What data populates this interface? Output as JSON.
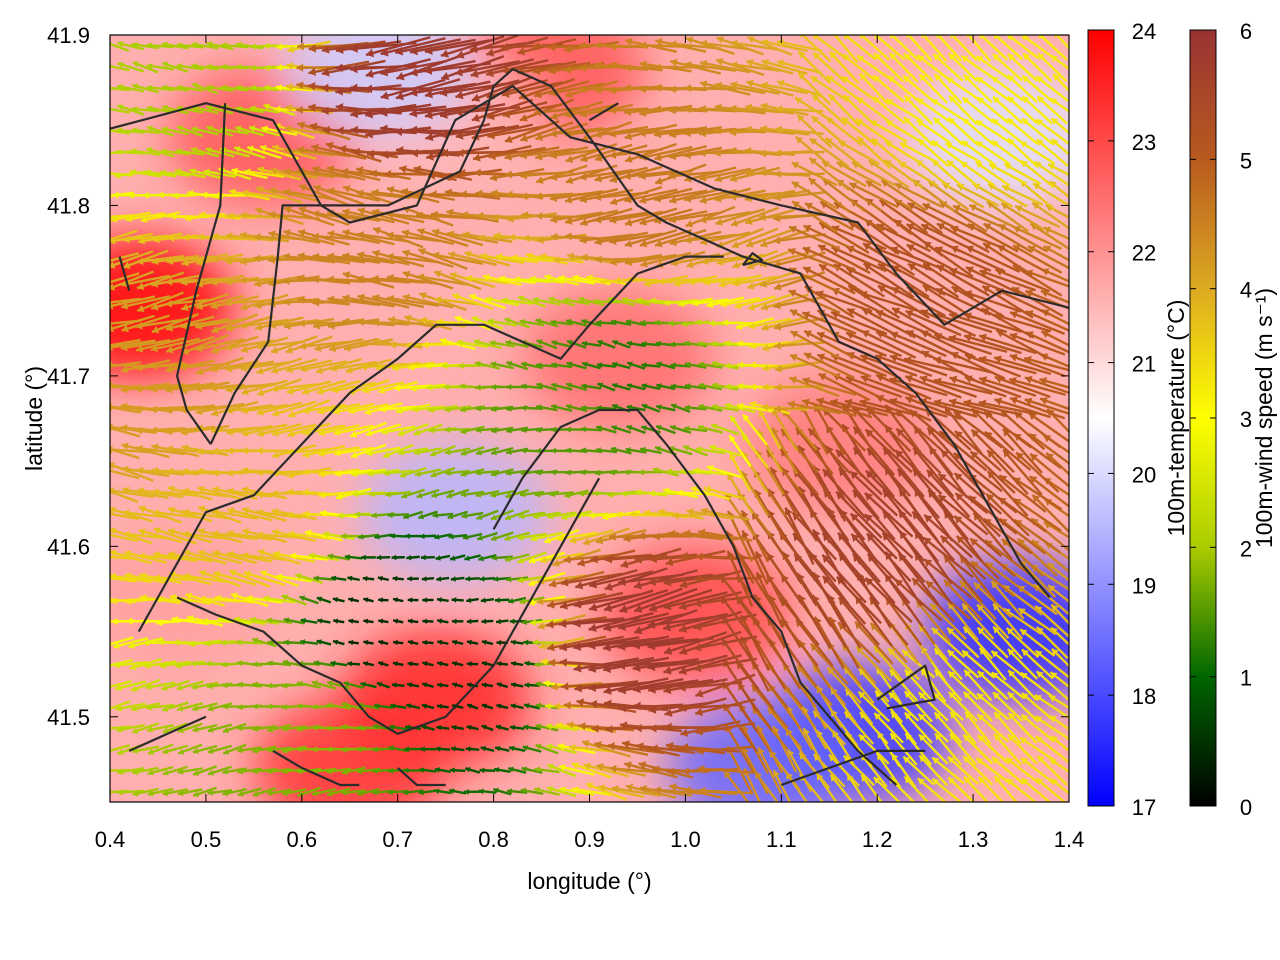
{
  "chart_data": {
    "type": "heatmap",
    "title": "",
    "xlabel": "longitude (°)",
    "ylabel": "latitude (°)",
    "xlim": [
      0.4,
      1.4
    ],
    "ylim": [
      41.45,
      41.9
    ],
    "x_ticks": [
      "0.4",
      "0.5",
      "0.6",
      "0.7",
      "0.8",
      "0.9",
      "1.0",
      "1.1",
      "1.2",
      "1.3",
      "1.4"
    ],
    "y_ticks": [
      "41.5",
      "41.6",
      "41.7",
      "41.8",
      "41.9"
    ],
    "temperature": {
      "label": "100m-temperature (°C)",
      "range": [
        17,
        24
      ],
      "ticks": [
        "17",
        "18",
        "19",
        "20",
        "21",
        "22",
        "23",
        "24"
      ],
      "colors": [
        "#0000ff",
        "#ffffff",
        "#ff0000"
      ],
      "hot_spots": [
        {
          "lon": 0.43,
          "lat": 41.74,
          "value": 24
        },
        {
          "lon": 0.74,
          "lat": 41.51,
          "value": 23.5
        },
        {
          "lon": 0.65,
          "lat": 41.47,
          "value": 23.3
        },
        {
          "lon": 0.56,
          "lat": 41.84,
          "value": 22.8
        },
        {
          "lon": 0.86,
          "lat": 41.88,
          "value": 22.8
        },
        {
          "lon": 0.93,
          "lat": 41.71,
          "value": 22.5
        },
        {
          "lon": 1.01,
          "lat": 41.56,
          "value": 23
        },
        {
          "lon": 1.16,
          "lat": 41.66,
          "value": 22.3
        },
        {
          "lon": 0.47,
          "lat": 41.57,
          "value": 21.8
        },
        {
          "lon": 0.75,
          "lat": 41.85,
          "value": 21.5
        }
      ],
      "cold_spots": [
        {
          "lon": 1.18,
          "lat": 41.49,
          "value": 17.8
        },
        {
          "lon": 1.35,
          "lat": 41.55,
          "value": 17.6
        },
        {
          "lon": 1.08,
          "lat": 41.47,
          "value": 18.4
        },
        {
          "lon": 0.76,
          "lat": 41.62,
          "value": 19.5
        },
        {
          "lon": 0.68,
          "lat": 41.88,
          "value": 19.8
        },
        {
          "lon": 1.33,
          "lat": 41.84,
          "value": 20.1
        }
      ]
    },
    "wind": {
      "label": "100m-wind speed (m s⁻¹)",
      "range": [
        0,
        6
      ],
      "ticks": [
        "0",
        "1",
        "2",
        "3",
        "4",
        "5",
        "6"
      ],
      "colors": [
        "#000000",
        "#006600",
        "#aacc00",
        "#ffff00",
        "#ddaa22",
        "#b85a1e",
        "#993333"
      ],
      "regimes": [
        {
          "lon": 0.78,
          "lat": 41.53,
          "speed": 0.5
        },
        {
          "lon": 0.68,
          "lat": 41.55,
          "speed": 0.4
        },
        {
          "lon": 0.88,
          "lat": 41.68,
          "speed": 1.5
        },
        {
          "lon": 0.93,
          "lat": 41.7,
          "speed": 1.2
        },
        {
          "lon": 0.5,
          "lat": 41.88,
          "speed": 2.0
        },
        {
          "lon": 0.62,
          "lat": 41.5,
          "speed": 1.8
        },
        {
          "lon": 0.55,
          "lat": 41.62,
          "speed": 3.8
        },
        {
          "lon": 0.95,
          "lat": 41.8,
          "speed": 4.6
        },
        {
          "lon": 0.68,
          "lat": 41.78,
          "speed": 4.5
        },
        {
          "lon": 0.72,
          "lat": 41.87,
          "speed": 5.8
        },
        {
          "lon": 0.95,
          "lat": 41.55,
          "speed": 5.8
        },
        {
          "lon": 1.2,
          "lat": 41.6,
          "speed": 5.6
        },
        {
          "lon": 1.25,
          "lat": 41.75,
          "speed": 5.2
        },
        {
          "lon": 1.3,
          "lat": 41.86,
          "speed": 3.2
        },
        {
          "lon": 1.28,
          "lat": 41.5,
          "speed": 3.3
        },
        {
          "lon": 0.45,
          "lat": 41.7,
          "speed": 4.2
        }
      ]
    },
    "contours": [
      [
        [
          0.4,
          41.845
        ],
        [
          0.5,
          41.86
        ],
        [
          0.57,
          41.85
        ],
        [
          0.62,
          41.8
        ],
        [
          0.65,
          41.79
        ],
        [
          0.72,
          41.8
        ],
        [
          0.76,
          41.85
        ],
        [
          0.82,
          41.87
        ],
        [
          0.88,
          41.84
        ],
        [
          0.95,
          41.83
        ],
        [
          1.03,
          41.81
        ],
        [
          1.1,
          41.8
        ],
        [
          1.18,
          41.79
        ],
        [
          1.22,
          41.76
        ],
        [
          1.27,
          41.73
        ],
        [
          1.33,
          41.75
        ],
        [
          1.4,
          41.74
        ]
      ],
      [
        [
          0.41,
          41.77
        ],
        [
          0.42,
          41.75
        ]
      ],
      [
        [
          0.52,
          41.86
        ],
        [
          0.515,
          41.8
        ],
        [
          0.49,
          41.75
        ],
        [
          0.47,
          41.7
        ],
        [
          0.48,
          41.68
        ],
        [
          0.505,
          41.66
        ]
      ],
      [
        [
          0.505,
          41.66
        ],
        [
          0.53,
          41.69
        ],
        [
          0.565,
          41.72
        ],
        [
          0.575,
          41.77
        ],
        [
          0.58,
          41.8
        ],
        [
          0.62,
          41.8
        ],
        [
          0.69,
          41.8
        ],
        [
          0.765,
          41.82
        ],
        [
          0.79,
          41.85
        ],
        [
          0.8,
          41.87
        ],
        [
          0.82,
          41.88
        ],
        [
          0.86,
          41.87
        ],
        [
          0.9,
          41.84
        ],
        [
          0.95,
          41.8
        ],
        [
          0.98,
          41.79
        ],
        [
          1.02,
          41.78
        ],
        [
          1.06,
          41.77
        ],
        [
          1.12,
          41.76
        ],
        [
          1.16,
          41.72
        ],
        [
          1.2,
          41.71
        ],
        [
          1.24,
          41.69
        ],
        [
          1.28,
          41.66
        ],
        [
          1.32,
          41.62
        ],
        [
          1.35,
          41.59
        ],
        [
          1.38,
          41.57
        ]
      ],
      [
        [
          0.43,
          41.55
        ],
        [
          0.46,
          41.58
        ],
        [
          0.5,
          41.62
        ],
        [
          0.55,
          41.63
        ],
        [
          0.6,
          41.66
        ],
        [
          0.65,
          41.69
        ],
        [
          0.7,
          41.71
        ],
        [
          0.74,
          41.73
        ],
        [
          0.79,
          41.73
        ],
        [
          0.83,
          41.72
        ],
        [
          0.87,
          41.71
        ],
        [
          0.9,
          41.73
        ],
        [
          0.95,
          41.76
        ],
        [
          1.0,
          41.77
        ],
        [
          1.04,
          41.77
        ]
      ],
      [
        [
          0.8,
          41.61
        ],
        [
          0.83,
          41.64
        ],
        [
          0.87,
          41.67
        ],
        [
          0.91,
          41.68
        ],
        [
          0.95,
          41.68
        ],
        [
          0.98,
          41.66
        ],
        [
          1.02,
          41.63
        ],
        [
          1.05,
          41.6
        ],
        [
          1.07,
          41.57
        ],
        [
          1.1,
          41.55
        ],
        [
          1.12,
          41.52
        ],
        [
          1.15,
          41.5
        ],
        [
          1.18,
          41.48
        ],
        [
          1.22,
          41.46
        ]
      ],
      [
        [
          0.47,
          41.57
        ],
        [
          0.51,
          41.56
        ],
        [
          0.56,
          41.55
        ],
        [
          0.6,
          41.53
        ],
        [
          0.64,
          41.52
        ],
        [
          0.67,
          41.5
        ],
        [
          0.7,
          41.49
        ],
        [
          0.75,
          41.5
        ],
        [
          0.8,
          41.53
        ],
        [
          0.84,
          41.57
        ],
        [
          0.88,
          41.61
        ],
        [
          0.91,
          41.64
        ]
      ],
      [
        [
          0.57,
          41.48
        ],
        [
          0.6,
          41.47
        ],
        [
          0.64,
          41.46
        ],
        [
          0.66,
          41.46
        ]
      ],
      [
        [
          0.7,
          41.47
        ],
        [
          0.72,
          41.46
        ],
        [
          0.75,
          41.46
        ]
      ],
      [
        [
          1.06,
          41.765
        ],
        [
          1.08,
          41.768
        ],
        [
          1.07,
          41.772
        ],
        [
          1.06,
          41.765
        ]
      ],
      [
        [
          1.2,
          41.51
        ],
        [
          1.25,
          41.53
        ],
        [
          1.26,
          41.51
        ],
        [
          1.21,
          41.505
        ]
      ],
      [
        [
          1.1,
          41.46
        ],
        [
          1.15,
          41.47
        ],
        [
          1.2,
          41.48
        ],
        [
          1.25,
          41.48
        ]
      ],
      [
        [
          0.42,
          41.48
        ],
        [
          0.46,
          41.49
        ],
        [
          0.5,
          41.5
        ]
      ],
      [
        [
          0.9,
          41.85
        ],
        [
          0.93,
          41.86
        ]
      ]
    ]
  }
}
